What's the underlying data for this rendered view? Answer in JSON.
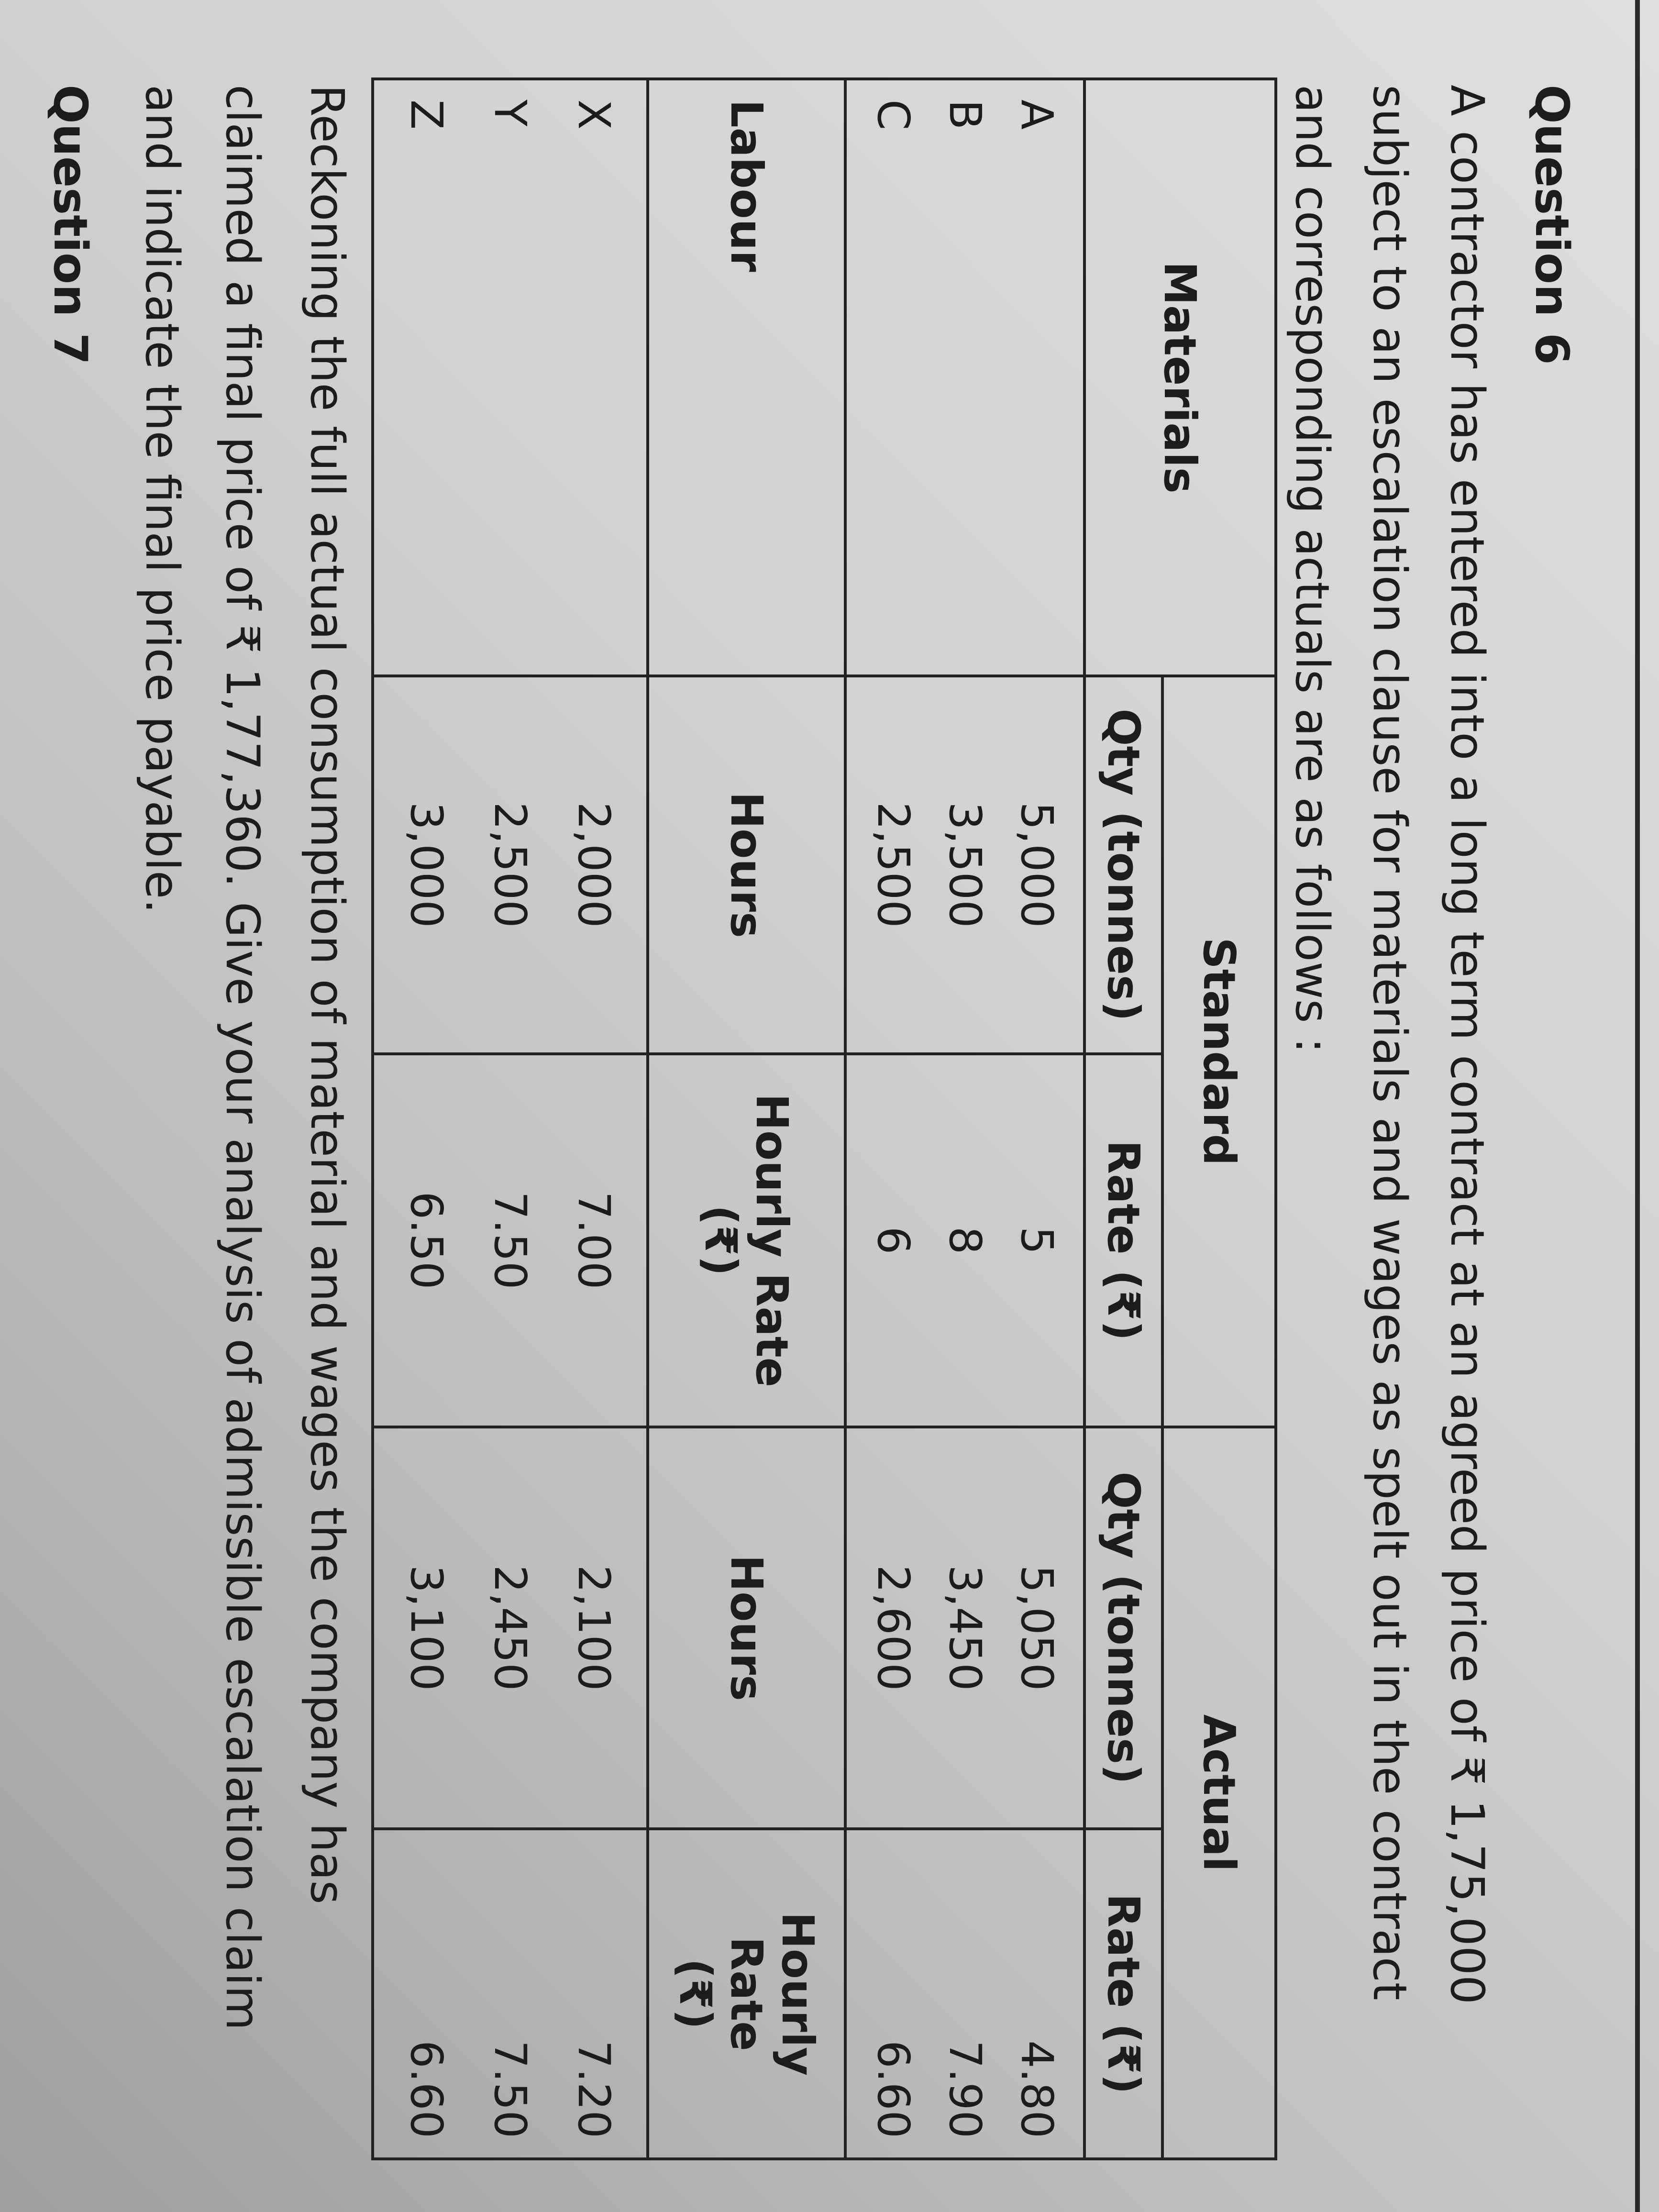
{
  "question_title": "Question 6",
  "intro_lines": [
    "A contractor has entered into a long term contract at an agreed price of ₹ 1,75,000",
    "subject to an escalation clause for materials and wages as spelt out in the contract",
    "and corresponding actuals are as follows :"
  ],
  "table": {
    "group_headers": {
      "materials": "Materials",
      "standard": "Standard",
      "actual": "Actual"
    },
    "material_subheaders": [
      "Qty (tonnes)",
      "Rate (₹)",
      "Qty (tonnes)",
      "Rate (₹)"
    ],
    "materials": [
      {
        "item": "A",
        "std_qty": "5,000",
        "std_rate": "5",
        "act_qty": "5,050",
        "act_rate": "4.80"
      },
      {
        "item": "B",
        "std_qty": "3,500",
        "std_rate": "8",
        "act_qty": "3,450",
        "act_rate": "7.90"
      },
      {
        "item": "C",
        "std_qty": "2,500",
        "std_rate": "6",
        "act_qty": "2,600",
        "act_rate": "6.60"
      }
    ],
    "labour_header": {
      "label": "Labour",
      "std_hours": "Hours",
      "std_rate_line1": "Hourly Rate",
      "std_rate_line2": "(₹)",
      "act_hours": "Hours",
      "act_rate_line1": "Hourly Rate",
      "act_rate_line2": "(₹)"
    },
    "labour": [
      {
        "item": "X",
        "std_hours": "2,000",
        "std_rate": "7.00",
        "act_hours": "2,100",
        "act_rate": "7.20"
      },
      {
        "item": "Y",
        "std_hours": "2,500",
        "std_rate": "7.50",
        "act_hours": "2,450",
        "act_rate": "7.50"
      },
      {
        "item": "Z",
        "std_hours": "3,000",
        "std_rate": "6.50",
        "act_hours": "3,100",
        "act_rate": "6.60"
      }
    ]
  },
  "closing_lines": [
    "Reckoning the full actual consumption of material and wages the company has",
    "claimed a final price of ₹ 1,77,360. Give your analysis of admissible escalation claim",
    "and indicate the final price payable."
  ],
  "next_question_title": "Question 7"
}
